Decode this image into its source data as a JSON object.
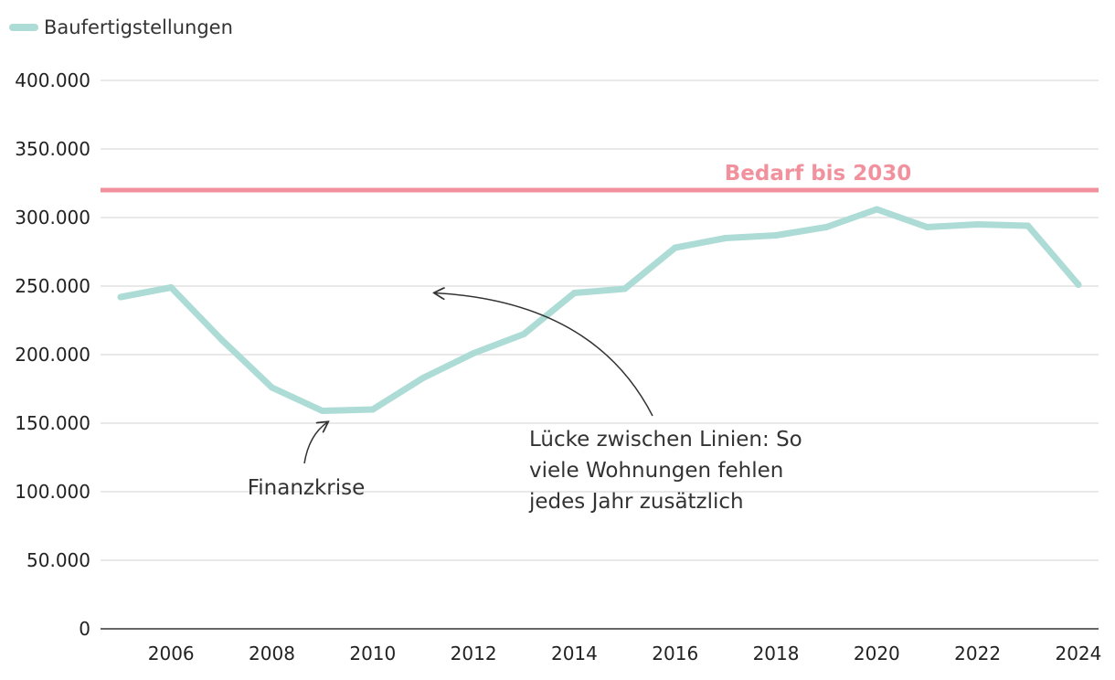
{
  "chart_data": {
    "type": "line",
    "title": "",
    "xlabel": "",
    "ylabel": "",
    "ylim": [
      0,
      400000
    ],
    "xlim": [
      2004.6,
      2024.4
    ],
    "grid": true,
    "legend_position": "top-left",
    "y_ticks": [
      0,
      50000,
      100000,
      150000,
      200000,
      250000,
      300000,
      350000,
      400000
    ],
    "y_tick_labels": [
      "0",
      "50.000",
      "100.000",
      "150.000",
      "200.000",
      "250.000",
      "300.000",
      "350.000",
      "400.000"
    ],
    "x_ticks": [
      2006,
      2008,
      2010,
      2012,
      2014,
      2016,
      2018,
      2020,
      2022,
      2024
    ],
    "x_tick_labels": [
      "2006",
      "2008",
      "2010",
      "2012",
      "2014",
      "2016",
      "2018",
      "2020",
      "2022",
      "2024"
    ],
    "series": [
      {
        "name": "Baufertigstellungen",
        "color": "#acdcd5",
        "x": [
          2005,
          2006,
          2007,
          2008,
          2009,
          2010,
          2011,
          2012,
          2013,
          2014,
          2015,
          2016,
          2017,
          2018,
          2019,
          2020,
          2021,
          2022,
          2023,
          2024
        ],
        "values": [
          242000,
          249000,
          211000,
          176000,
          159000,
          160000,
          183000,
          201000,
          215000,
          245000,
          248000,
          278000,
          285000,
          287000,
          293000,
          306000,
          293000,
          295000,
          294000,
          251000
        ]
      }
    ],
    "reference_line": {
      "label": "Bedarf bis 2030",
      "value": 320000,
      "color": "#f2919e"
    },
    "annotations": [
      {
        "id": "finanzkrise",
        "lines": [
          "Finanzkrise"
        ],
        "target_x": 2009.1,
        "target_y": 152000
      },
      {
        "id": "luecke",
        "lines": [
          "Lücke zwischen Linien: So",
          "viele Wohnungen fehlen",
          "jedes Jahr zusätzlich"
        ],
        "target_x": 2011.2,
        "target_y": 245000
      }
    ]
  }
}
